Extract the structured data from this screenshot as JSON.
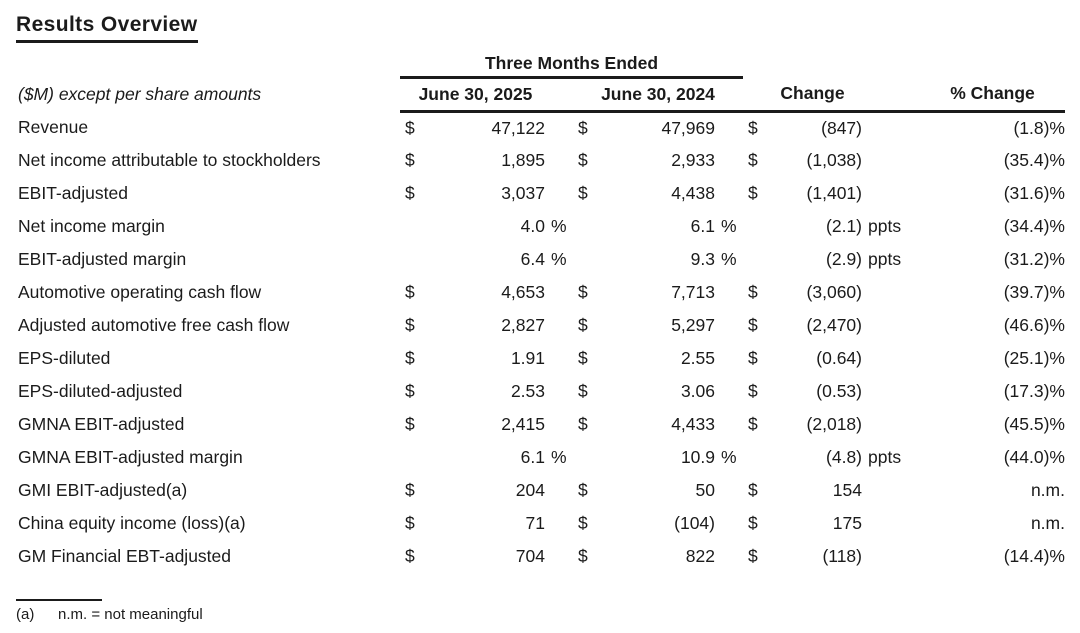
{
  "page": {
    "title": "Results Overview"
  },
  "table": {
    "group_header": "Three Months Ended",
    "row_label_header": "($M) except per share amounts",
    "columns": [
      "June 30, 2025",
      "June 30, 2024",
      "Change",
      "% Change"
    ],
    "rows": [
      {
        "label": "Revenue",
        "d1": "$",
        "v1": "47,122",
        "s1": "",
        "d2": "$",
        "v2": "47,969",
        "s2": "",
        "d3": "$",
        "v3": "(847)",
        "s3": "",
        "pct": "(1.8)%"
      },
      {
        "label": "Net income attributable to stockholders",
        "d1": "$",
        "v1": "1,895",
        "s1": "",
        "d2": "$",
        "v2": "2,933",
        "s2": "",
        "d3": "$",
        "v3": "(1,038)",
        "s3": "",
        "pct": "(35.4)%"
      },
      {
        "label": "EBIT-adjusted",
        "d1": "$",
        "v1": "3,037",
        "s1": "",
        "d2": "$",
        "v2": "4,438",
        "s2": "",
        "d3": "$",
        "v3": "(1,401)",
        "s3": "",
        "pct": "(31.6)%"
      },
      {
        "label": "Net income margin",
        "d1": "",
        "v1": "4.0",
        "s1": "%",
        "d2": "",
        "v2": "6.1",
        "s2": "%",
        "d3": "",
        "v3": "(2.1)",
        "s3": "ppts",
        "pct": "(34.4)%"
      },
      {
        "label": "EBIT-adjusted margin",
        "d1": "",
        "v1": "6.4",
        "s1": "%",
        "d2": "",
        "v2": "9.3",
        "s2": "%",
        "d3": "",
        "v3": "(2.9)",
        "s3": "ppts",
        "pct": "(31.2)%"
      },
      {
        "label": "Automotive operating cash flow",
        "d1": "$",
        "v1": "4,653",
        "s1": "",
        "d2": "$",
        "v2": "7,713",
        "s2": "",
        "d3": "$",
        "v3": "(3,060)",
        "s3": "",
        "pct": "(39.7)%"
      },
      {
        "label": "Adjusted automotive free cash flow",
        "d1": "$",
        "v1": "2,827",
        "s1": "",
        "d2": "$",
        "v2": "5,297",
        "s2": "",
        "d3": "$",
        "v3": "(2,470)",
        "s3": "",
        "pct": "(46.6)%"
      },
      {
        "label": "EPS-diluted",
        "d1": "$",
        "v1": "1.91",
        "s1": "",
        "d2": "$",
        "v2": "2.55",
        "s2": "",
        "d3": "$",
        "v3": "(0.64)",
        "s3": "",
        "pct": "(25.1)%"
      },
      {
        "label": "EPS-diluted-adjusted",
        "d1": "$",
        "v1": "2.53",
        "s1": "",
        "d2": "$",
        "v2": "3.06",
        "s2": "",
        "d3": "$",
        "v3": "(0.53)",
        "s3": "",
        "pct": "(17.3)%"
      },
      {
        "label": "GMNA EBIT-adjusted",
        "d1": "$",
        "v1": "2,415",
        "s1": "",
        "d2": "$",
        "v2": "4,433",
        "s2": "",
        "d3": "$",
        "v3": "(2,018)",
        "s3": "",
        "pct": "(45.5)%"
      },
      {
        "label": "GMNA EBIT-adjusted margin",
        "d1": "",
        "v1": "6.1",
        "s1": "%",
        "d2": "",
        "v2": "10.9",
        "s2": "%",
        "d3": "",
        "v3": "(4.8)",
        "s3": "ppts",
        "pct": "(44.0)%"
      },
      {
        "label": "GMI EBIT-adjusted(a)",
        "d1": "$",
        "v1": "204",
        "s1": "",
        "d2": "$",
        "v2": "50",
        "s2": "",
        "d3": "$",
        "v3": "154",
        "s3": "",
        "pct": "n.m."
      },
      {
        "label": "China equity income (loss)(a)",
        "d1": "$",
        "v1": "71",
        "s1": "",
        "d2": "$",
        "v2": "(104)",
        "s2": "",
        "d3": "$",
        "v3": "175",
        "s3": "",
        "pct": "n.m."
      },
      {
        "label": "GM Financial EBT-adjusted",
        "d1": "$",
        "v1": "704",
        "s1": "",
        "d2": "$",
        "v2": "822",
        "s2": "",
        "d3": "$",
        "v3": "(118)",
        "s3": "",
        "pct": "(14.4)%"
      }
    ]
  },
  "footnote": {
    "marker": "(a)",
    "text": "n.m. = not meaningful"
  }
}
